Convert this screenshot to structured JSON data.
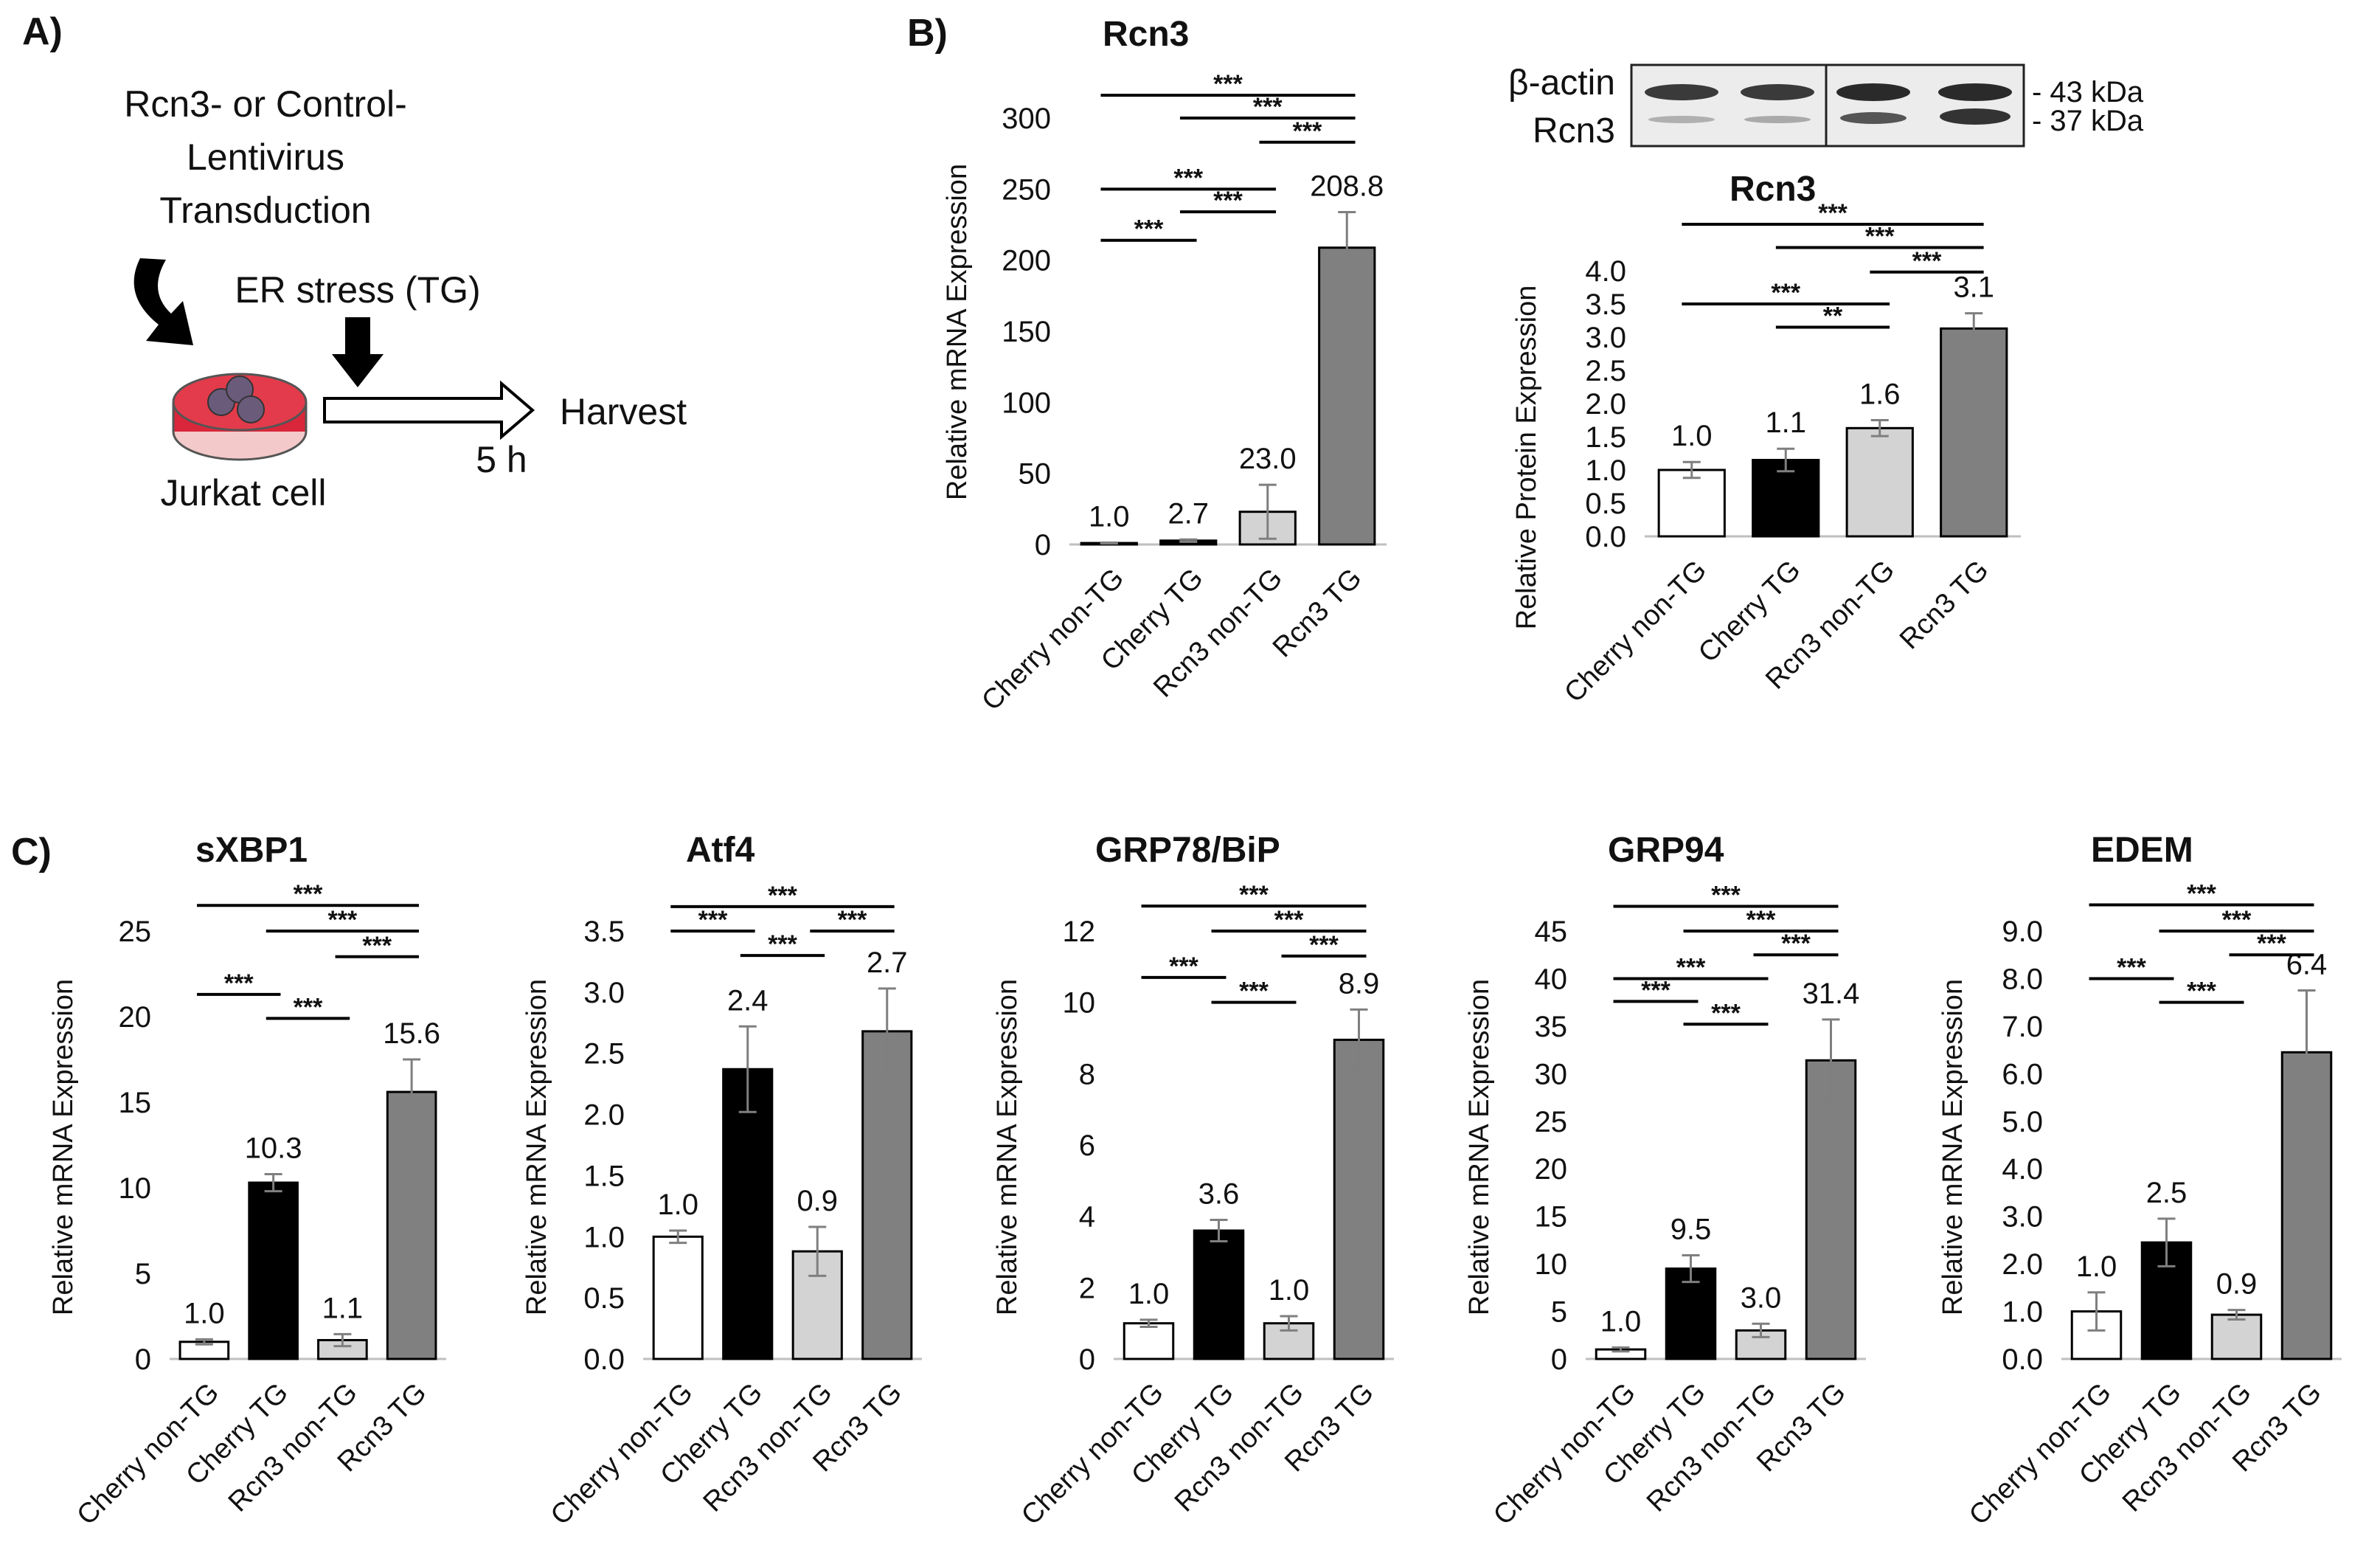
{
  "panel_labels": {
    "a": "A)",
    "b": "B)",
    "c": "C)"
  },
  "schematic": {
    "transduction": [
      "Rcn3- or Control-",
      "Lentivirus",
      "Transduction"
    ],
    "er_stress": "ER stress (TG)",
    "harvest": "Harvest",
    "time": "5 h",
    "cell": "Jurkat cell"
  },
  "colors": {
    "cherry_non_tg": "#ffffff",
    "cherry_tg": "#000000",
    "rcn3_non_tg": "#d3d3d3",
    "rcn3_tg": "#808080",
    "error": "#7f7f7f",
    "dish": "#e02020"
  },
  "western_blot": {
    "labels": [
      "β-actin",
      "Rcn3"
    ],
    "markers": [
      "- 43 kDa",
      "- 37 kDa"
    ]
  },
  "chart_data": [
    {
      "id": "rcn3-mrna",
      "panel": "B",
      "type": "bar",
      "title": "Rcn3",
      "ylabel": "Relative mRNA Expression",
      "categories": [
        "Cherry non-TG",
        "Cherry TG",
        "Rcn3 non-TG",
        "Rcn3 TG"
      ],
      "values": [
        1.0,
        2.7,
        23.0,
        208.8
      ],
      "errors": [
        0.3,
        0.8,
        19,
        25
      ],
      "value_labels": [
        "1.0",
        "2.7",
        "23.0",
        "208.8"
      ],
      "ylim": [
        0,
        300
      ],
      "ticks": [
        0,
        50,
        100,
        150,
        200,
        250,
        300
      ],
      "tick_labels": [
        "0",
        "50",
        "100",
        "150",
        "200",
        "250",
        "300"
      ],
      "significance": [
        {
          "from": 0,
          "to": 3,
          "label": "***",
          "y": 316
        },
        {
          "from": 1,
          "to": 3,
          "label": "***",
          "y": 300
        },
        {
          "from": 2,
          "to": 3,
          "label": "***",
          "y": 283
        },
        {
          "from": 0,
          "to": 2,
          "label": "***",
          "y": 250
        },
        {
          "from": 1,
          "to": 2,
          "label": "***",
          "y": 234
        },
        {
          "from": 0,
          "to": 1,
          "label": "***",
          "y": 214
        }
      ]
    },
    {
      "id": "rcn3-protein",
      "panel": "B",
      "type": "bar",
      "title": "Rcn3",
      "ylabel": "Relative Protein Expression",
      "categories": [
        "Cherry non-TG",
        "Cherry TG",
        "Rcn3 non-TG",
        "Rcn3 TG"
      ],
      "values": [
        1.0,
        1.15,
        1.63,
        3.13
      ],
      "errors": [
        0.12,
        0.17,
        0.12,
        0.23
      ],
      "value_labels": [
        "1.0",
        "1.1",
        "1.6",
        "3.1"
      ],
      "ylim": [
        0,
        4
      ],
      "ticks": [
        0,
        0.5,
        1,
        1.5,
        2,
        2.5,
        3,
        3.5,
        4
      ],
      "tick_labels": [
        "0.0",
        "0.5",
        "1.0",
        "1.5",
        "2.0",
        "2.5",
        "3.0",
        "3.5",
        "4.0"
      ],
      "significance": [
        {
          "from": 0,
          "to": 3,
          "label": "***",
          "y": 4.7
        },
        {
          "from": 1,
          "to": 3,
          "label": "***",
          "y": 4.35
        },
        {
          "from": 2,
          "to": 3,
          "label": "***",
          "y": 3.98
        },
        {
          "from": 0,
          "to": 2,
          "label": "***",
          "y": 3.5
        },
        {
          "from": 1,
          "to": 2,
          "label": "**",
          "y": 3.15
        }
      ]
    },
    {
      "id": "sxbp1",
      "panel": "C",
      "type": "bar",
      "title": "sXBP1",
      "ylabel": "Relative mRNA Expression",
      "categories": [
        "Cherry non-TG",
        "Cherry TG",
        "Rcn3 non-TG",
        "Rcn3 TG"
      ],
      "values": [
        1.0,
        10.3,
        1.1,
        15.6
      ],
      "errors": [
        0.15,
        0.5,
        0.35,
        1.9
      ],
      "value_labels": [
        "1.0",
        "10.3",
        "1.1",
        "15.6"
      ],
      "ylim": [
        0,
        25
      ],
      "ticks": [
        0,
        5,
        10,
        15,
        20,
        25
      ],
      "tick_labels": [
        "0",
        "5",
        "10",
        "15",
        "20",
        "25"
      ],
      "significance": [
        {
          "from": 0,
          "to": 3,
          "label": "***",
          "y": 26.5
        },
        {
          "from": 1,
          "to": 3,
          "label": "***",
          "y": 25.0
        },
        {
          "from": 2,
          "to": 3,
          "label": "***",
          "y": 23.5
        },
        {
          "from": 0,
          "to": 1,
          "label": "***",
          "y": 21.3
        },
        {
          "from": 1,
          "to": 2,
          "label": "***",
          "y": 19.9
        }
      ]
    },
    {
      "id": "atf4",
      "panel": "C",
      "type": "bar",
      "title": "Atf4",
      "ylabel": "Relative mRNA Expression",
      "categories": [
        "Cherry non-TG",
        "Cherry TG",
        "Rcn3 non-TG",
        "Rcn3 TG"
      ],
      "values": [
        1.0,
        2.37,
        0.88,
        2.68
      ],
      "errors": [
        0.05,
        0.35,
        0.2,
        0.35
      ],
      "value_labels": [
        "1.0",
        "2.4",
        "0.9",
        "2.7"
      ],
      "ylim": [
        0,
        3.5
      ],
      "ticks": [
        0,
        0.5,
        1,
        1.5,
        2,
        2.5,
        3,
        3.5
      ],
      "tick_labels": [
        "0.0",
        "0.5",
        "1.0",
        "1.5",
        "2.0",
        "2.5",
        "3.0",
        "3.5"
      ],
      "significance": [
        {
          "from": 0,
          "to": 3,
          "label": "***",
          "y": 3.7
        },
        {
          "from": 0,
          "to": 1,
          "label": "***",
          "y": 3.5
        },
        {
          "from": 2,
          "to": 3,
          "label": "***",
          "y": 3.5
        },
        {
          "from": 1,
          "to": 2,
          "label": "***",
          "y": 3.3
        }
      ]
    },
    {
      "id": "grp78",
      "panel": "C",
      "type": "bar",
      "title": "GRP78/BiP",
      "ylabel": "Relative mRNA Expression",
      "categories": [
        "Cherry non-TG",
        "Cherry TG",
        "Rcn3 non-TG",
        "Rcn3 TG"
      ],
      "values": [
        1.0,
        3.6,
        1.0,
        8.95
      ],
      "errors": [
        0.1,
        0.3,
        0.2,
        0.85
      ],
      "value_labels": [
        "1.0",
        "3.6",
        "1.0",
        "8.9"
      ],
      "ylim": [
        0,
        12
      ],
      "ticks": [
        0,
        2,
        4,
        6,
        8,
        10,
        12
      ],
      "tick_labels": [
        "0",
        "2",
        "4",
        "6",
        "8",
        "10",
        "12"
      ],
      "significance": [
        {
          "from": 0,
          "to": 3,
          "label": "***",
          "y": 12.7
        },
        {
          "from": 1,
          "to": 3,
          "label": "***",
          "y": 12.0
        },
        {
          "from": 2,
          "to": 3,
          "label": "***",
          "y": 11.3
        },
        {
          "from": 0,
          "to": 1,
          "label": "***",
          "y": 10.7
        },
        {
          "from": 1,
          "to": 2,
          "label": "***",
          "y": 10.0
        }
      ]
    },
    {
      "id": "grp94",
      "panel": "C",
      "type": "bar",
      "title": "GRP94",
      "ylabel": "Relative mRNA Expression",
      "categories": [
        "Cherry non-TG",
        "Cherry TG",
        "Rcn3 non-TG",
        "Rcn3 TG"
      ],
      "values": [
        1.0,
        9.5,
        3.0,
        31.4
      ],
      "errors": [
        0.2,
        1.4,
        0.7,
        4.3
      ],
      "value_labels": [
        "1.0",
        "9.5",
        "3.0",
        "31.4"
      ],
      "ylim": [
        0,
        45
      ],
      "ticks": [
        0,
        5,
        10,
        15,
        20,
        25,
        30,
        35,
        40,
        45
      ],
      "tick_labels": [
        "0",
        "5",
        "10",
        "15",
        "20",
        "25",
        "30",
        "35",
        "40",
        "45"
      ],
      "significance": [
        {
          "from": 0,
          "to": 3,
          "label": "***",
          "y": 47.6
        },
        {
          "from": 1,
          "to": 3,
          "label": "***",
          "y": 45.0
        },
        {
          "from": 2,
          "to": 3,
          "label": "***",
          "y": 42.5
        },
        {
          "from": 0,
          "to": 2,
          "label": "***",
          "y": 40.0
        },
        {
          "from": 0,
          "to": 1,
          "label": "***",
          "y": 37.6
        },
        {
          "from": 1,
          "to": 2,
          "label": "***",
          "y": 35.2
        }
      ]
    },
    {
      "id": "edem",
      "panel": "C",
      "type": "bar",
      "title": "EDEM",
      "ylabel": "Relative mRNA Expression",
      "categories": [
        "Cherry non-TG",
        "Cherry TG",
        "Rcn3 non-TG",
        "Rcn3 TG"
      ],
      "values": [
        1.0,
        2.45,
        0.93,
        6.45
      ],
      "errors": [
        0.4,
        0.5,
        0.1,
        1.3
      ],
      "value_labels": [
        "1.0",
        "2.5",
        "0.9",
        "6.4"
      ],
      "ylim": [
        0,
        9
      ],
      "ticks": [
        0,
        1,
        2,
        3,
        4,
        5,
        6,
        7,
        8,
        9
      ],
      "tick_labels": [
        "0.0",
        "1.0",
        "2.0",
        "3.0",
        "4.0",
        "5.0",
        "6.0",
        "7.0",
        "8.0",
        "9.0"
      ],
      "significance": [
        {
          "from": 0,
          "to": 3,
          "label": "***",
          "y": 9.55
        },
        {
          "from": 1,
          "to": 3,
          "label": "***",
          "y": 9.0
        },
        {
          "from": 2,
          "to": 3,
          "label": "***",
          "y": 8.5
        },
        {
          "from": 0,
          "to": 1,
          "label": "***",
          "y": 8.0
        },
        {
          "from": 1,
          "to": 2,
          "label": "***",
          "y": 7.5
        }
      ]
    }
  ]
}
